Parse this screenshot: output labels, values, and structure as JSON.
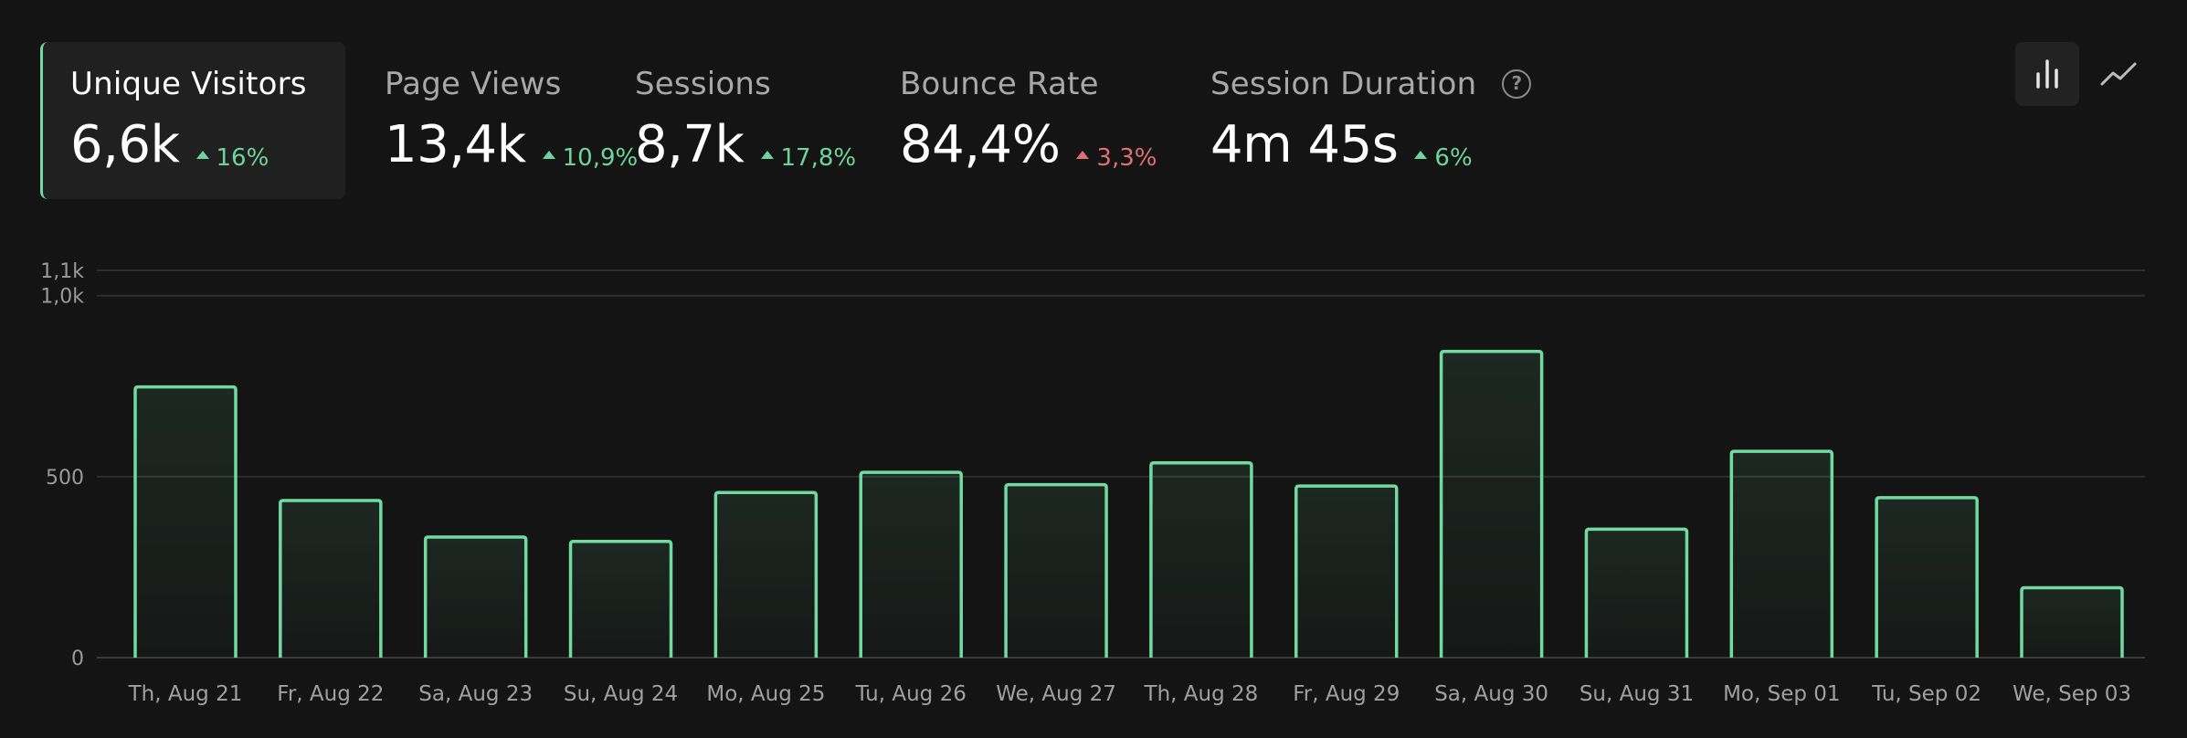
{
  "metrics": [
    {
      "label": "Unique Visitors",
      "value": "6,6k",
      "change": "16%",
      "trend": "up",
      "status": "good",
      "active": true
    },
    {
      "label": "Page Views",
      "value": "13,4k",
      "change": "10,9%",
      "trend": "up",
      "status": "good",
      "active": false
    },
    {
      "label": "Sessions",
      "value": "8,7k",
      "change": "17,8%",
      "trend": "up",
      "status": "good",
      "active": false
    },
    {
      "label": "Bounce Rate",
      "value": "84,4%",
      "change": "3,3%",
      "trend": "up",
      "status": "bad",
      "active": false
    },
    {
      "label": "Session Duration",
      "value": "4m 45s",
      "change": "6%",
      "trend": "up",
      "status": "good",
      "active": false,
      "help_icon": "help-circle-icon"
    }
  ],
  "view_toggle": {
    "options": [
      {
        "name": "bar-chart-icon",
        "active": true
      },
      {
        "name": "line-chart-icon",
        "active": false
      }
    ]
  },
  "colors": {
    "background": "#141414",
    "accent": "#6fdb9f",
    "positive": "#6fd49c",
    "negative": "#e07070",
    "grid": "#2e2e2e"
  },
  "chart_data": {
    "type": "bar",
    "title": "",
    "xlabel": "",
    "ylabel": "",
    "ylim": [
      0,
      1070
    ],
    "ytick_values": [
      0,
      500,
      1000,
      1070
    ],
    "ytick_labels": [
      "0",
      "500",
      "1,0k",
      "1,1k"
    ],
    "categories": [
      "Th, Aug 21",
      "Fr, Aug 22",
      "Sa, Aug 23",
      "Su, Aug 24",
      "Mo, Aug 25",
      "Tu, Aug 26",
      "We, Aug 27",
      "Th, Aug 28",
      "Fr, Aug 29",
      "Sa, Aug 30",
      "Su, Aug 31",
      "Mo, Sep 01",
      "Tu, Sep 02",
      "We, Sep 03"
    ],
    "series": [
      {
        "name": "Unique Visitors",
        "values": [
          748,
          434,
          333,
          321,
          456,
          512,
          478,
          538,
          474,
          846,
          355,
          570,
          442,
          193
        ]
      }
    ],
    "grid": true,
    "legend": "none"
  }
}
